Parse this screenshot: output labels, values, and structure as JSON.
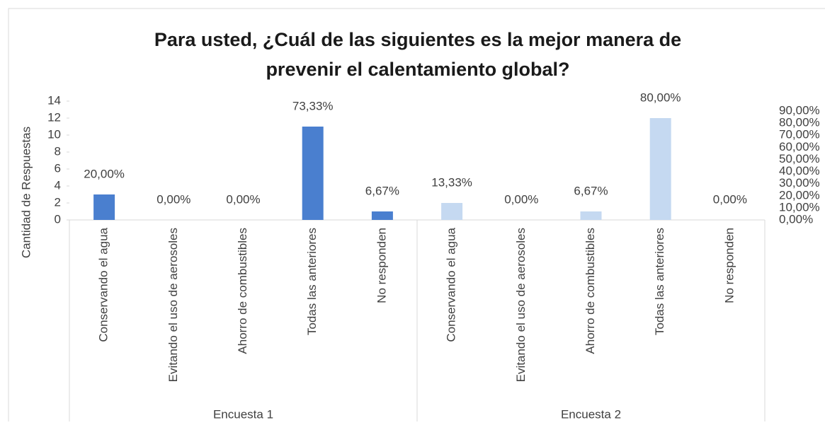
{
  "chart_data": {
    "type": "bar",
    "title": [
      "Para usted, ¿Cuál de las siguientes es la mejor manera de",
      "prevenir el calentamiento global?"
    ],
    "y_label": "Cantidad de Respuestas",
    "categories": [
      "Conservando el agua",
      "Evitando el uso de aerosoles",
      "Ahorro de combustibles",
      "Todas las anteriores",
      "No responden"
    ],
    "series": [
      {
        "name": "Encuesta 1",
        "color": "#4a7fcf",
        "values": [
          3,
          0,
          0,
          11,
          1
        ],
        "value_labels": [
          "20,00%",
          "0,00%",
          "0,00%",
          "73,33%",
          "6,67%"
        ]
      },
      {
        "name": "Encuesta 2",
        "color": "#c5d9f1",
        "values": [
          2,
          0,
          1,
          12,
          0
        ],
        "value_labels": [
          "13,33%",
          "0,00%",
          "6,67%",
          "80,00%",
          "0,00%"
        ]
      }
    ],
    "ylim": [
      0,
      14
    ],
    "yticks": [
      0,
      2,
      4,
      6,
      8,
      10,
      12,
      14
    ],
    "y2lim": [
      0,
      90
    ],
    "y2ticks": [
      {
        "value": 0,
        "label": "0,00%"
      },
      {
        "value": 10,
        "label": "10,00%"
      },
      {
        "value": 20,
        "label": "20,00%"
      },
      {
        "value": 30,
        "label": "30,00%"
      },
      {
        "value": 40,
        "label": "40,00%"
      },
      {
        "value": 50,
        "label": "50,00%"
      },
      {
        "value": 60,
        "label": "60,00%"
      },
      {
        "value": 70,
        "label": "70,00%"
      },
      {
        "value": 80,
        "label": "80,00%"
      },
      {
        "value": 90,
        "label": "90,00%"
      }
    ],
    "grid": false
  }
}
